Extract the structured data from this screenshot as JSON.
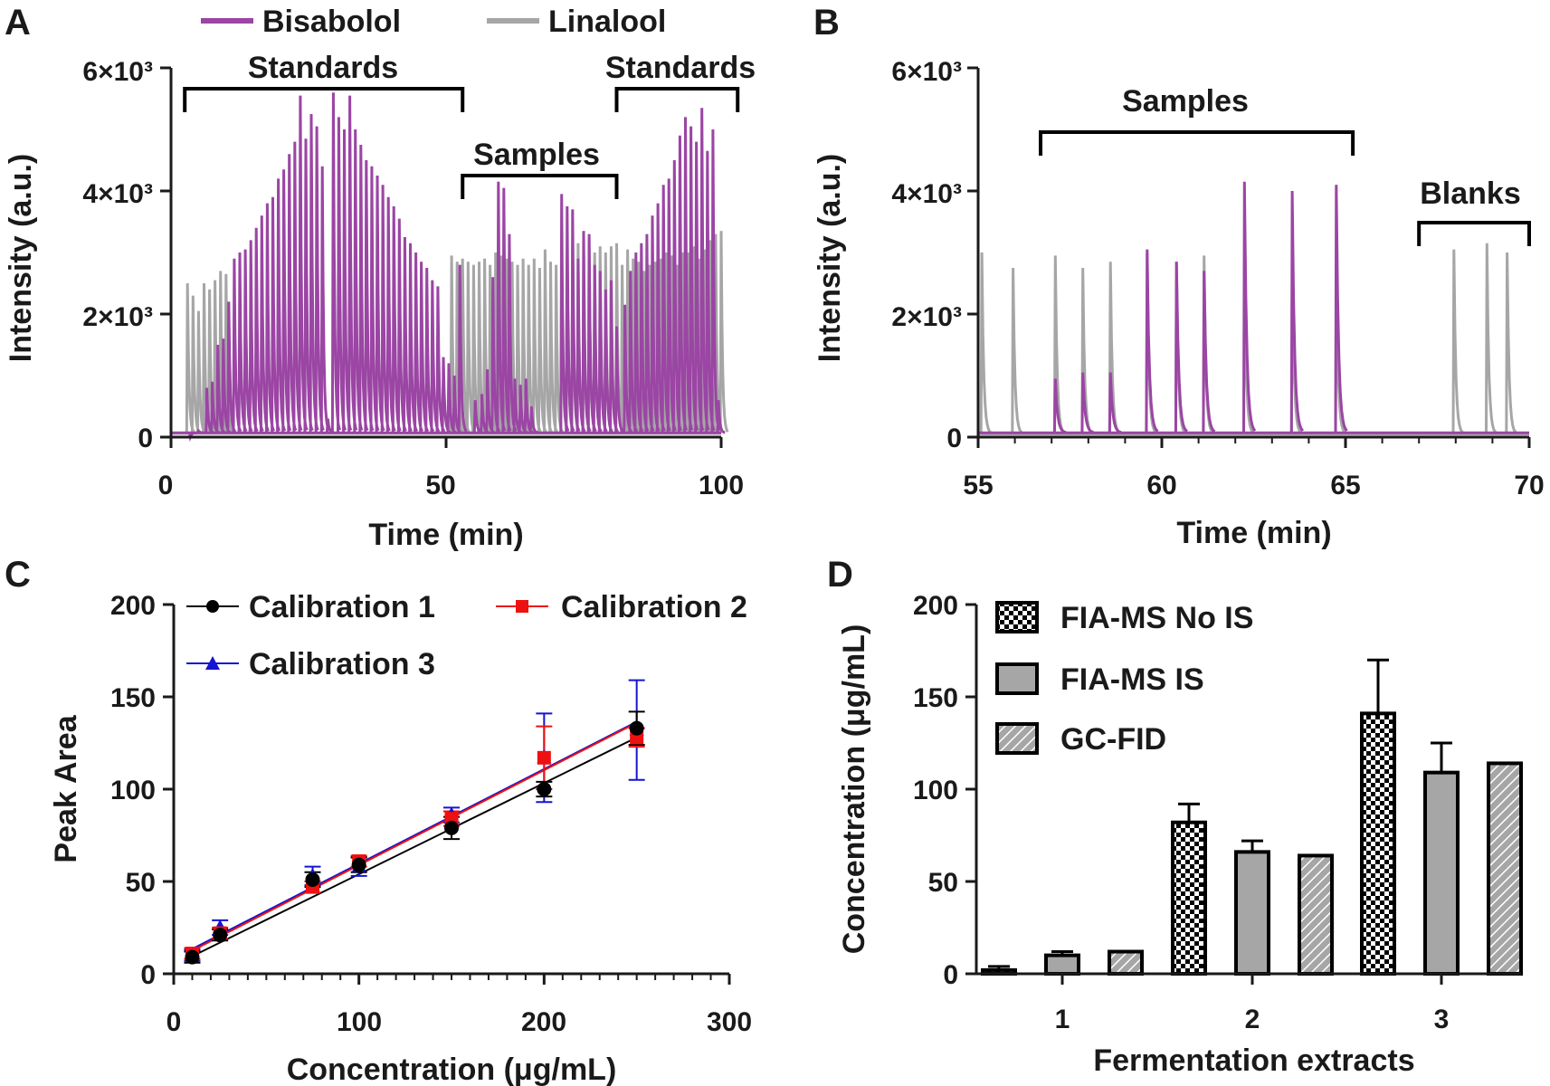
{
  "colors": {
    "bisabolol": "#9b45a4",
    "linalool": "#a6a6a6",
    "cal1": "#000000",
    "cal2": "#ee1111",
    "cal3": "#1414d2",
    "bar_gray": "#a6a6a6"
  },
  "chart_data": [
    {
      "id": "A",
      "type": "line",
      "panel_label": "A",
      "xlabel": "Time (min)",
      "ylabel": "Intensity (a.u.)",
      "xlim": [
        0,
        100
      ],
      "ylim": [
        0,
        6000
      ],
      "xticks": [
        "0",
        "50",
        "100"
      ],
      "yticks": [
        "0",
        "2×10³",
        "4×10³",
        "6×10³"
      ],
      "legend": [
        "Bisabolol",
        "Linalool"
      ],
      "annotations": [
        {
          "label": "Standards",
          "x_start": 2.5,
          "x_end": 53
        },
        {
          "label": "Samples",
          "x_start": 53,
          "x_end": 81
        },
        {
          "label": "Standards",
          "x_start": 81,
          "x_end": 103
        }
      ],
      "series": [
        {
          "name": "Bisabolol",
          "peak_times": [
            3.5,
            5,
            6.5,
            7.5,
            8.5,
            9.5,
            10.5,
            11.5,
            12.5,
            13.5,
            14.5,
            15.5,
            16.5,
            17.5,
            18.5,
            19.5,
            20.5,
            21.5,
            22.5,
            23.5,
            24.5,
            25.5,
            26.5,
            27.5,
            28.5,
            29.5,
            30.5,
            31.5,
            32.5,
            33.5,
            34.5,
            35.5,
            36.5,
            37.5,
            38.5,
            39.5,
            40.5,
            41.5,
            42.5,
            43.5,
            44.5,
            45.5,
            46.5,
            47.5,
            48.5,
            49.5,
            50.5,
            51.5,
            52.5,
            55.3,
            56.5,
            57.5,
            58.5,
            59.5,
            60.5,
            61.5,
            62.5,
            63.5,
            64.5,
            65.5,
            71,
            72,
            73,
            74,
            75,
            76,
            77,
            78,
            79,
            80,
            81,
            82.5,
            83.5,
            84.5,
            85.5,
            86.5,
            87.5,
            88.5,
            89.5,
            90.5,
            91.5,
            92.5,
            93.5,
            94.5,
            95.5,
            96.5,
            97.5,
            98.5,
            99.5
          ],
          "peak_values": [
            0,
            100,
            800,
            900,
            1500,
            1600,
            2200,
            2900,
            3000,
            3050,
            3200,
            3400,
            3600,
            3800,
            3900,
            4200,
            4350,
            4600,
            4800,
            5550,
            4850,
            5250,
            5050,
            4400,
            300,
            5600,
            5200,
            5000,
            5550,
            5000,
            4750,
            4500,
            4400,
            4250,
            4100,
            3900,
            3750,
            3550,
            3250,
            3150,
            3000,
            2850,
            2750,
            2550,
            2450,
            1300,
            1200,
            1000,
            2800,
            600,
            700,
            1100,
            2600,
            4150,
            4050,
            3300,
            950,
            850,
            950,
            500,
            3950,
            3750,
            3700,
            2900,
            3350,
            3300,
            2800,
            2700,
            2400,
            2550,
            1800,
            2150,
            2700,
            3000,
            3150,
            3300,
            3600,
            3800,
            4100,
            4200,
            4500,
            4900,
            5200,
            5050,
            4800,
            5350,
            4650,
            5000,
            600
          ],
          "baseline": 70
        },
        {
          "name": "Linalool",
          "peak_times": [
            3,
            4,
            5,
            6,
            7,
            8,
            9,
            10,
            51,
            52,
            53,
            54,
            55,
            56,
            57,
            58,
            59,
            60,
            61,
            62,
            63,
            64,
            65,
            66,
            67,
            68,
            69,
            70,
            71,
            72,
            73,
            74,
            75,
            76,
            77,
            78,
            79,
            80,
            81,
            82,
            83,
            84,
            85,
            86,
            87,
            88,
            89,
            90,
            91,
            92,
            93,
            94,
            95,
            96,
            97,
            98,
            99,
            100
          ],
          "peak_values": [
            2500,
            2300,
            2050,
            2500,
            2400,
            2550,
            2700,
            2650,
            2950,
            2850,
            2900,
            2850,
            2800,
            2850,
            2900,
            2800,
            3000,
            2950,
            2900,
            2850,
            2800,
            2900,
            2800,
            2900,
            2750,
            3050,
            2850,
            2800,
            3050,
            2950,
            3100,
            3150,
            3050,
            3150,
            3000,
            3100,
            3000,
            3100,
            3150,
            2800,
            3050,
            2900,
            2850,
            2700,
            2800,
            2850,
            2900,
            3000,
            2950,
            2800,
            3000,
            3000,
            3100,
            2900,
            3050,
            3200,
            3300,
            3350
          ],
          "baseline": 60
        }
      ]
    },
    {
      "id": "B",
      "type": "line",
      "panel_label": "B",
      "xlabel": "Time (min)",
      "ylabel": "Intensity (a.u.)",
      "xlim": [
        55,
        70
      ],
      "ylim": [
        0,
        6000
      ],
      "xticks": [
        "55",
        "60",
        "65",
        "70"
      ],
      "yticks": [
        "0",
        "2×10³",
        "4×10³",
        "6×10³"
      ],
      "annotations": [
        {
          "label": "Samples",
          "x_start": 56.7,
          "x_end": 65.2
        },
        {
          "label": "Blanks",
          "x_start": 67,
          "x_end": 70
        }
      ],
      "series": [
        {
          "name": "Bisabolol",
          "peak_times": [
            57.1,
            57.85,
            58.6,
            59.6,
            60.4,
            61.15,
            62.25,
            63.55,
            64.75
          ],
          "peak_values": [
            950,
            1050,
            1050,
            3050,
            2850,
            2700,
            4150,
            4000,
            4100
          ],
          "baseline": 70
        },
        {
          "name": "Linalool",
          "peak_times": [
            55.1,
            55.95,
            57.1,
            57.85,
            58.6,
            59.6,
            60.4,
            61.15,
            62.25,
            63.55,
            64.75,
            67.95,
            68.85,
            69.4
          ],
          "peak_values": [
            3000,
            2750,
            2950,
            2750,
            2850,
            3000,
            2850,
            2950,
            2900,
            2900,
            2850,
            3050,
            3150,
            3000
          ],
          "baseline": 50
        }
      ]
    },
    {
      "id": "C",
      "type": "scatter",
      "panel_label": "C",
      "xlabel": "Concentration (μg/mL)",
      "ylabel": "Peak Area",
      "xlim": [
        0,
        300
      ],
      "ylim": [
        0,
        200
      ],
      "xticks": [
        "0",
        "100",
        "200",
        "300"
      ],
      "yticks": [
        "0",
        "50",
        "100",
        "150",
        "200"
      ],
      "x": [
        10,
        25,
        75,
        100,
        150,
        200,
        250
      ],
      "series": [
        {
          "name": "Calibration 1",
          "marker": "circle",
          "values": [
            9,
            21,
            51,
            59,
            79,
            100,
            133
          ],
          "errors": [
            3,
            3,
            4,
            4,
            6,
            4,
            9
          ],
          "fit": [
            [
              10,
              9.5
            ],
            [
              250,
              128
            ]
          ]
        },
        {
          "name": "Calibration 2",
          "marker": "square",
          "values": [
            11,
            22,
            47,
            61,
            84,
            117,
            128
          ],
          "errors": [
            3,
            3,
            3,
            3,
            4,
            17,
            5
          ],
          "fit": [
            [
              10,
              12.5
            ],
            [
              250,
              136
            ]
          ]
        },
        {
          "name": "Calibration 3",
          "marker": "triangle",
          "values": [
            10,
            25,
            53,
            58,
            86,
            117,
            132
          ],
          "errors": [
            3,
            4,
            5,
            5,
            4,
            24,
            27
          ],
          "fit": [
            [
              10,
              13.5
            ],
            [
              250,
              136.5
            ]
          ]
        }
      ]
    },
    {
      "id": "D",
      "type": "bar",
      "panel_label": "D",
      "xlabel": "Fermentation extracts",
      "ylabel": "Concentration (μg/mL)",
      "ylim": [
        0,
        200
      ],
      "yticks": [
        "0",
        "50",
        "100",
        "150",
        "200"
      ],
      "categories": [
        "1",
        "2",
        "3"
      ],
      "series": [
        {
          "name": "FIA-MS No IS",
          "pattern": "checker",
          "values": [
            2,
            82,
            141
          ],
          "errors": [
            2,
            10,
            29
          ]
        },
        {
          "name": "FIA-MS IS",
          "pattern": "solid",
          "values": [
            10,
            66,
            109
          ],
          "errors": [
            2,
            6,
            16
          ]
        },
        {
          "name": "GC-FID",
          "pattern": "hatch",
          "values": [
            12,
            64,
            114
          ],
          "errors": [
            0,
            0,
            0
          ]
        }
      ]
    }
  ]
}
